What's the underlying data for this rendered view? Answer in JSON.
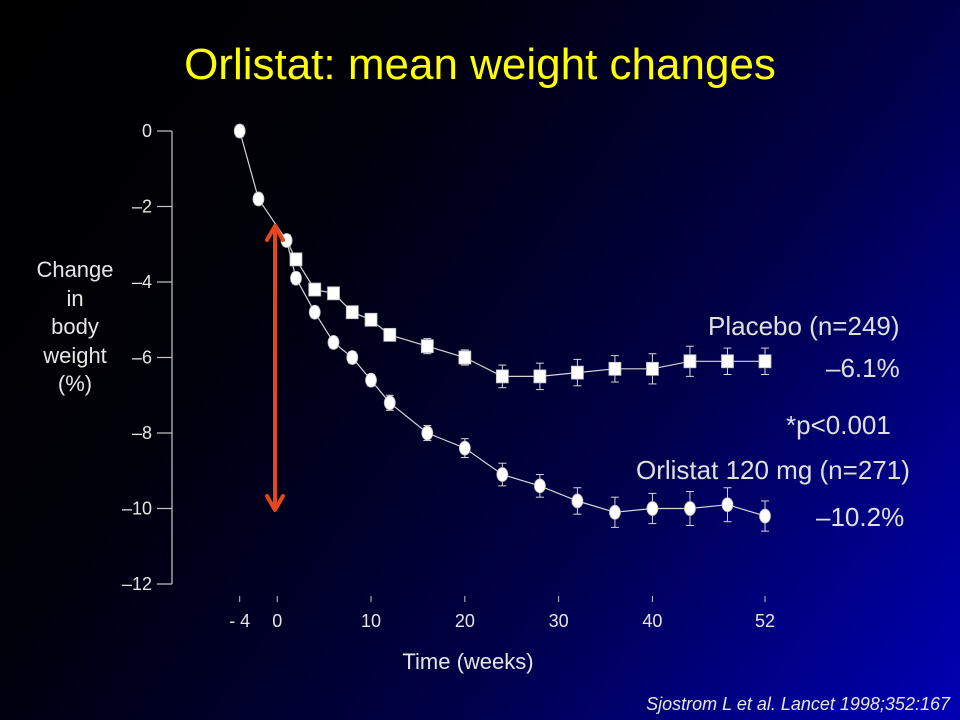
{
  "colors": {
    "title": "#ffff00",
    "text": "#e0e0e0",
    "axis": "#c8c8c8",
    "series_line": "#d6d6d6",
    "marker": "#ffffff",
    "arrow": "#e5461f",
    "background_left": "#000000",
    "background_right": "#0000b4"
  },
  "citation": "Sjostrom L et al. Lancet 1998;352:167",
  "chart_data": {
    "type": "line",
    "title": "Orlistat: mean weight changes",
    "xlabel": "Time (weeks)",
    "ylabel": "Change in body weight (%)",
    "xlim": [
      -4,
      52
    ],
    "ylim": [
      -12,
      0
    ],
    "xticks": [
      -4,
      0,
      10,
      20,
      30,
      40,
      52
    ],
    "xtick_labels": [
      "- 4",
      "0",
      "10",
      "20",
      "30",
      "40",
      "52"
    ],
    "yticks": [
      0,
      -2,
      -4,
      -6,
      -8,
      -10,
      -12
    ],
    "ytick_labels": [
      "0",
      "–2",
      "–4",
      "–6",
      "–8",
      "–10",
      "–12"
    ],
    "grid": false,
    "legend": "right",
    "series": [
      {
        "name": "Orlistat 120 mg (n=271)",
        "marker": "circle",
        "end_label": "–10.2%",
        "x": [
          -4,
          -2,
          1,
          2,
          4,
          6,
          8,
          10,
          12,
          16,
          20,
          24,
          28,
          32,
          36,
          40,
          44,
          48,
          52
        ],
        "y": [
          0,
          -1.8,
          -2.9,
          -3.9,
          -4.8,
          -5.6,
          -6.0,
          -6.6,
          -7.2,
          -8.0,
          -8.4,
          -9.1,
          -9.4,
          -9.8,
          -10.1,
          -10.0,
          -10.0,
          -9.9,
          -10.2
        ],
        "error": [
          0.15,
          0.15,
          0.15,
          0.15,
          0.15,
          0.15,
          0.15,
          0.15,
          0.2,
          0.2,
          0.25,
          0.3,
          0.3,
          0.35,
          0.4,
          0.4,
          0.45,
          0.45,
          0.4
        ]
      },
      {
        "name": "Placebo (n=249)",
        "marker": "square",
        "end_label": "–6.1%",
        "x": [
          2,
          4,
          6,
          8,
          10,
          12,
          16,
          20,
          24,
          28,
          32,
          36,
          40,
          44,
          48,
          52
        ],
        "y": [
          -3.4,
          -4.2,
          -4.3,
          -4.8,
          -5.0,
          -5.4,
          -5.7,
          -6.0,
          -6.5,
          -6.5,
          -6.4,
          -6.3,
          -6.3,
          -6.1,
          -6.1,
          -6.1
        ],
        "error": [
          0.15,
          0.15,
          0.15,
          0.15,
          0.15,
          0.15,
          0.2,
          0.2,
          0.3,
          0.35,
          0.35,
          0.35,
          0.4,
          0.4,
          0.35,
          0.35
        ]
      }
    ],
    "annotations": [
      {
        "text": "*p<0.001"
      }
    ]
  }
}
